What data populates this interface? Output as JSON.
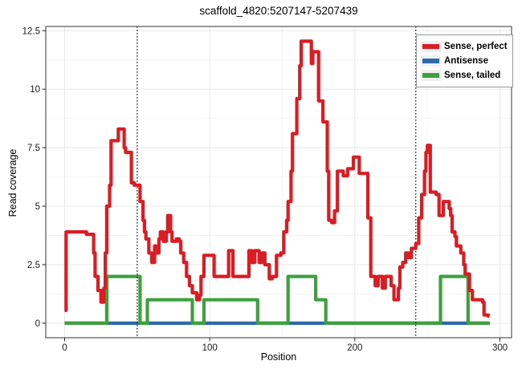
{
  "chart_data": {
    "type": "line",
    "subtype": "step-coverage",
    "title": "scaffold_4820:5207147-5207439",
    "xlabel": "Position",
    "ylabel": "Read coverage",
    "xlim": [
      -13,
      308
    ],
    "ylim": [
      -0.62,
      12.68
    ],
    "x_ticks": {
      "values": [
        0,
        100,
        200,
        300
      ],
      "labels": [
        "0",
        "100",
        "200",
        "300"
      ]
    },
    "x_minor_ticks": [
      50,
      150,
      250
    ],
    "y_ticks": {
      "values": [
        0,
        2.5,
        5,
        7.5,
        10,
        12.5
      ],
      "labels": [
        "0",
        "2.5",
        "5",
        "7.5",
        "10",
        "12.5"
      ]
    },
    "y_minor_ticks": [
      1.25,
      3.75,
      6.25,
      8.75,
      11.25
    ],
    "grid": true,
    "legend_position": "top-right-inside",
    "vlines": {
      "positions": [
        50,
        242
      ],
      "style": "dotted",
      "color": "#000000"
    },
    "colors": {
      "major_grid": "#e8e8e8",
      "minor_grid": "#f4f4f4",
      "panel_border": "#454545",
      "axis_text": "#1a1a1a"
    },
    "series": [
      {
        "name": "Sense, perfect",
        "color": "#DC1C23",
        "end_x": 292.5,
        "step_points": [
          [
            0,
            0.55
          ],
          [
            1,
            3.9
          ],
          [
            15,
            3.8
          ],
          [
            20,
            3.0
          ],
          [
            21,
            2.0
          ],
          [
            23,
            1.4
          ],
          [
            25,
            0.9
          ],
          [
            27,
            1.5
          ],
          [
            28,
            3.0
          ],
          [
            29,
            5.0
          ],
          [
            31,
            5.9
          ],
          [
            32,
            7.8
          ],
          [
            37,
            8.3
          ],
          [
            41,
            7.5
          ],
          [
            42,
            7.3
          ],
          [
            46,
            6.0
          ],
          [
            48,
            5.9
          ],
          [
            52,
            5.2
          ],
          [
            54,
            4.4
          ],
          [
            55,
            3.9
          ],
          [
            56,
            3.6
          ],
          [
            58,
            3.0
          ],
          [
            60,
            2.6
          ],
          [
            62,
            3.3
          ],
          [
            63,
            3.0
          ],
          [
            65,
            3.6
          ],
          [
            66,
            3.9
          ],
          [
            68,
            3.5
          ],
          [
            70,
            3.9
          ],
          [
            71,
            4.6
          ],
          [
            73,
            3.9
          ],
          [
            74,
            3.5
          ],
          [
            77,
            3.6
          ],
          [
            79,
            3.5
          ],
          [
            80,
            3.0
          ],
          [
            82,
            2.6
          ],
          [
            84,
            2.0
          ],
          [
            86,
            1.6
          ],
          [
            88,
            1.3
          ],
          [
            91,
            1.0
          ],
          [
            93,
            1.2
          ],
          [
            94,
            2.0
          ],
          [
            96,
            2.9
          ],
          [
            103,
            2.0
          ],
          [
            113,
            3.1
          ],
          [
            116,
            2.0
          ],
          [
            127,
            3.1
          ],
          [
            129,
            2.6
          ],
          [
            131,
            3.1
          ],
          [
            134,
            2.6
          ],
          [
            136,
            3.0
          ],
          [
            138,
            2.5
          ],
          [
            141,
            1.9
          ],
          [
            143,
            2.0
          ],
          [
            146,
            2.9
          ],
          [
            149,
            3.0
          ],
          [
            151,
            3.9
          ],
          [
            153,
            4.4
          ],
          [
            154,
            5.2
          ],
          [
            156,
            6.5
          ],
          [
            157,
            8.1
          ],
          [
            160,
            9.6
          ],
          [
            162,
            11.0
          ],
          [
            163,
            12.05
          ],
          [
            170,
            11.1
          ],
          [
            171,
            11.6
          ],
          [
            175,
            9.5
          ],
          [
            178,
            8.6
          ],
          [
            181,
            6.5
          ],
          [
            182,
            4.4
          ],
          [
            184,
            4.3
          ],
          [
            186,
            4.8
          ],
          [
            188,
            6.5
          ],
          [
            192,
            6.3
          ],
          [
            195,
            6.6
          ],
          [
            199,
            7.1
          ],
          [
            203,
            6.4
          ],
          [
            209,
            4.5
          ],
          [
            211,
            2.0
          ],
          [
            214,
            1.6
          ],
          [
            216,
            2.0
          ],
          [
            219,
            1.5
          ],
          [
            221,
            2.0
          ],
          [
            225,
            1.6
          ],
          [
            227,
            1.0
          ],
          [
            230,
            1.5
          ],
          [
            231,
            2.4
          ],
          [
            233,
            2.6
          ],
          [
            235,
            3.0
          ],
          [
            237,
            2.8
          ],
          [
            239,
            3.2
          ],
          [
            242,
            3.4
          ],
          [
            244,
            4.5
          ],
          [
            246,
            5.5
          ],
          [
            248,
            6.5
          ],
          [
            249,
            7.3
          ],
          [
            250,
            7.6
          ],
          [
            252,
            5.6
          ],
          [
            256,
            5.5
          ],
          [
            258,
            4.6
          ],
          [
            261,
            5.2
          ],
          [
            265,
            4.9
          ],
          [
            266,
            4.6
          ],
          [
            267,
            3.9
          ],
          [
            269,
            3.7
          ],
          [
            270,
            3.3
          ],
          [
            273,
            3.0
          ],
          [
            275,
            2.5
          ],
          [
            276,
            2.1
          ],
          [
            279,
            1.4
          ],
          [
            281,
            1.0
          ],
          [
            288,
            0.9
          ],
          [
            289,
            0.35
          ],
          [
            292,
            0.3
          ]
        ]
      },
      {
        "name": "Antisense",
        "color": "#3069A8",
        "end_x": 293,
        "step_points": [
          [
            0,
            0
          ]
        ]
      },
      {
        "name": "Sense, tailed",
        "color": "#3DA23D",
        "end_x": 293,
        "step_points": [
          [
            0,
            0
          ],
          [
            29,
            2
          ],
          [
            52,
            0
          ],
          [
            57,
            1
          ],
          [
            88,
            0
          ],
          [
            96,
            1
          ],
          [
            133,
            0
          ],
          [
            154,
            2
          ],
          [
            173,
            1
          ],
          [
            180,
            0
          ],
          [
            259,
            2
          ],
          [
            278,
            0
          ]
        ]
      }
    ]
  }
}
